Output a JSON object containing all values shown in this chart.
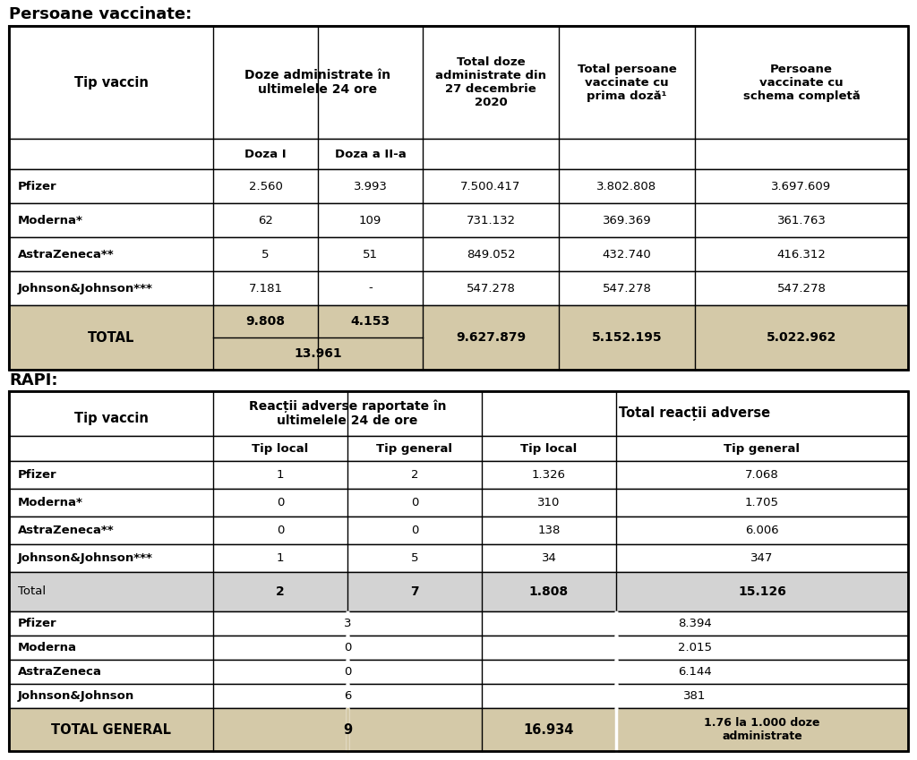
{
  "title1": "Persoane vaccinate:",
  "title2": "RAPI:",
  "bg_color": "#ffffff",
  "tan_color": "#d4c9a8",
  "light_gray": "#d3d3d3",
  "table1": {
    "rows": [
      [
        "Pfizer",
        "2.560",
        "3.993",
        "7.500.417",
        "3.802.808",
        "3.697.609"
      ],
      [
        "Moderna*",
        "62",
        "109",
        "731.132",
        "369.369",
        "361.763"
      ],
      [
        "AstraZeneca**",
        "5",
        "51",
        "849.052",
        "432.740",
        "416.312"
      ],
      [
        "Johnson&Johnson***",
        "7.181",
        "-",
        "547.278",
        "547.278",
        "547.278"
      ]
    ],
    "total_row": {
      "label": "TOTAL",
      "doza1": "9.808",
      "doza2": "4.153",
      "combined": "13.961",
      "total_doze": "9.627.879",
      "prima_doza": "5.152.195",
      "schema": "5.022.962"
    }
  },
  "table2": {
    "rows": [
      [
        "Pfizer",
        "1",
        "2",
        "1.326",
        "7.068"
      ],
      [
        "Moderna*",
        "0",
        "0",
        "310",
        "1.705"
      ],
      [
        "AstraZeneca**",
        "0",
        "0",
        "138",
        "6.006"
      ],
      [
        "Johnson&Johnson***",
        "1",
        "5",
        "34",
        "347"
      ]
    ],
    "total_row": {
      "label": "Total",
      "tip_local_24": "2",
      "tip_gen_24": "7",
      "tip_local_total": "1.808",
      "tip_gen_total": "15.126"
    },
    "section2_rows": [
      [
        "Pfizer",
        "3",
        "8.394"
      ],
      [
        "Moderna",
        "0",
        "2.015"
      ],
      [
        "AstraZeneca",
        "0",
        "6.144"
      ],
      [
        "Johnson&Johnson",
        "6",
        "381"
      ]
    ],
    "total_general": {
      "label": "TOTAL GENERAL",
      "val_24": "9",
      "total_local": "16.934",
      "total_gen": "1.76 la 1.000 doze\nadministrate"
    }
  }
}
